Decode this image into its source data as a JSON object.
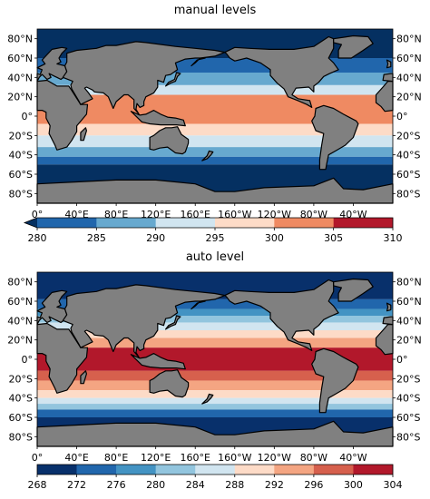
{
  "chart_data": [
    {
      "type": "heatmap",
      "title": "manual levels",
      "colorbar": {
        "levels": [
          280,
          285,
          290,
          295,
          300,
          305,
          310
        ],
        "tick_labels": [
          "280",
          "285",
          "290",
          "295",
          "300",
          "305",
          "310"
        ],
        "colors": [
          "#2166ac",
          "#67a9cf",
          "#d1e5f0",
          "#fddbc7",
          "#ef8a62",
          "#b2182b"
        ],
        "extend": "min",
        "under_color": "#053061"
      },
      "x_ticks": [
        "0°",
        "40°E",
        "80°E",
        "120°E",
        "160°E",
        "160°W",
        "120°W",
        "80°W",
        "40°W"
      ],
      "y_ticks": [
        "80°N",
        "60°N",
        "40°N",
        "20°N",
        "0°",
        "20°S",
        "40°S",
        "60°S",
        "80°S"
      ],
      "lat_bands": [
        {
          "lat": [
            60,
            90
          ],
          "value": 275
        },
        {
          "lat": [
            45,
            60
          ],
          "value": 283
        },
        {
          "lat": [
            32,
            45
          ],
          "value": 288
        },
        {
          "lat": [
            22,
            32
          ],
          "value": 293
        },
        {
          "lat": [
            -8,
            22
          ],
          "value": 302
        },
        {
          "lat": [
            -20,
            -8
          ],
          "value": 298
        },
        {
          "lat": [
            -32,
            -20
          ],
          "value": 293
        },
        {
          "lat": [
            -42,
            -32
          ],
          "value": 288
        },
        {
          "lat": [
            -50,
            -42
          ],
          "value": 282
        },
        {
          "lat": [
            -90,
            -50
          ],
          "value": 275
        }
      ]
    },
    {
      "type": "heatmap",
      "title": "auto level",
      "colorbar": {
        "levels": [
          268,
          272,
          276,
          280,
          284,
          288,
          292,
          296,
          300,
          304
        ],
        "tick_labels": [
          "268",
          "272",
          "276",
          "280",
          "284",
          "288",
          "292",
          "296",
          "300",
          "304"
        ],
        "colors": [
          "#08306b",
          "#2166ac",
          "#4393c3",
          "#92c5de",
          "#d1e5f0",
          "#fddbc7",
          "#f4a582",
          "#d6604d",
          "#b2182b"
        ],
        "extend": "neither"
      },
      "x_ticks": [
        "0°",
        "40°E",
        "80°E",
        "120°E",
        "160°E",
        "160°W",
        "120°W",
        "80°W",
        "40°W"
      ],
      "y_ticks": [
        "80°N",
        "60°N",
        "40°N",
        "20°N",
        "0°",
        "20°S",
        "40°S",
        "60°S",
        "80°S"
      ],
      "lat_bands": [
        {
          "lat": [
            62,
            90
          ],
          "value": 270
        },
        {
          "lat": [
            52,
            62
          ],
          "value": 274
        },
        {
          "lat": [
            45,
            52
          ],
          "value": 279
        },
        {
          "lat": [
            38,
            45
          ],
          "value": 283
        },
        {
          "lat": [
            30,
            38
          ],
          "value": 287
        },
        {
          "lat": [
            22,
            30
          ],
          "value": 291
        },
        {
          "lat": [
            12,
            22
          ],
          "value": 295
        },
        {
          "lat": [
            -12,
            12
          ],
          "value": 301
        },
        {
          "lat": [
            -22,
            -12
          ],
          "value": 297
        },
        {
          "lat": [
            -32,
            -22
          ],
          "value": 293
        },
        {
          "lat": [
            -40,
            -32
          ],
          "value": 289
        },
        {
          "lat": [
            -46,
            -40
          ],
          "value": 285
        },
        {
          "lat": [
            -52,
            -46
          ],
          "value": 281
        },
        {
          "lat": [
            -60,
            -52
          ],
          "value": 275
        },
        {
          "lat": [
            -90,
            -60
          ],
          "value": 270
        }
      ]
    }
  ],
  "colors": {
    "land": "#808080",
    "coastline": "#000000"
  }
}
